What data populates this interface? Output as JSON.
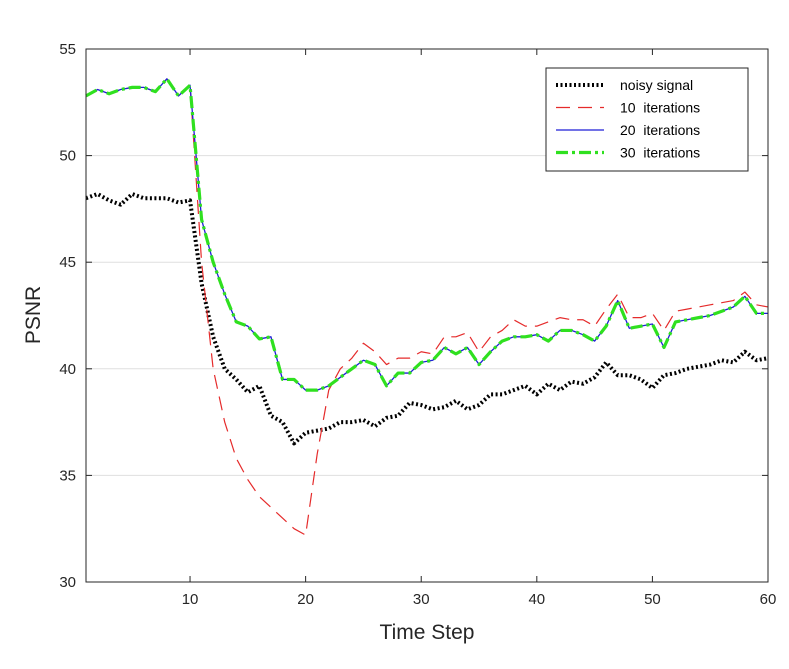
{
  "chart_data": {
    "type": "line",
    "title": "",
    "xlabel": "Time Step",
    "ylabel": "PSNR",
    "xlim": [
      1,
      60
    ],
    "ylim": [
      30,
      55
    ],
    "xticks": [
      10,
      20,
      30,
      40,
      50,
      60
    ],
    "yticks": [
      30,
      35,
      40,
      45,
      50,
      55
    ],
    "grid": "horizontal",
    "legend_position": "top-right",
    "x": [
      1,
      2,
      3,
      4,
      5,
      6,
      7,
      8,
      9,
      10,
      11,
      12,
      13,
      14,
      15,
      16,
      17,
      18,
      19,
      20,
      21,
      22,
      23,
      24,
      25,
      26,
      27,
      28,
      29,
      30,
      31,
      32,
      33,
      34,
      35,
      36,
      37,
      38,
      39,
      40,
      41,
      42,
      43,
      44,
      45,
      46,
      47,
      48,
      49,
      50,
      51,
      52,
      53,
      54,
      55,
      56,
      57,
      58,
      59,
      60
    ],
    "series": [
      {
        "name": "noisy signal",
        "color": "#000000",
        "style": "dotted",
        "values": [
          48.0,
          48.2,
          47.9,
          47.7,
          48.2,
          48.0,
          48.0,
          48.0,
          47.8,
          47.9,
          44.0,
          41.5,
          40.0,
          39.5,
          38.9,
          39.2,
          37.8,
          37.5,
          36.5,
          37.0,
          37.1,
          37.2,
          37.5,
          37.5,
          37.6,
          37.3,
          37.7,
          37.8,
          38.4,
          38.3,
          38.1,
          38.2,
          38.5,
          38.1,
          38.3,
          38.8,
          38.8,
          39.0,
          39.2,
          38.8,
          39.3,
          39.0,
          39.4,
          39.3,
          39.6,
          40.3,
          39.7,
          39.7,
          39.5,
          39.1,
          39.7,
          39.8,
          40.0,
          40.1,
          40.2,
          40.4,
          40.3,
          40.8,
          40.4,
          40.5
        ]
      },
      {
        "name": "10  iterations",
        "color": "#e52b2b",
        "style": "dashed",
        "values": [
          52.8,
          53.1,
          52.9,
          53.1,
          53.2,
          53.2,
          53.0,
          53.6,
          52.8,
          53.3,
          45.0,
          40.0,
          37.5,
          35.8,
          34.8,
          34.0,
          33.5,
          33.0,
          32.5,
          32.2,
          36.0,
          39.0,
          40.0,
          40.5,
          41.2,
          40.8,
          40.2,
          40.5,
          40.5,
          40.8,
          40.7,
          41.5,
          41.5,
          41.7,
          40.8,
          41.5,
          41.8,
          42.3,
          42.0,
          42.0,
          42.2,
          42.4,
          42.3,
          42.3,
          42.0,
          42.8,
          43.5,
          42.4,
          42.4,
          42.6,
          41.8,
          42.7,
          42.8,
          42.9,
          43.0,
          43.1,
          43.2,
          43.6,
          43.0,
          42.9
        ]
      },
      {
        "name": "20  iterations",
        "color": "#1f1fd6",
        "style": "solid",
        "values": [
          52.8,
          53.1,
          52.9,
          53.1,
          53.2,
          53.2,
          53.0,
          53.6,
          52.8,
          53.3,
          47.0,
          45.0,
          43.5,
          42.2,
          42.0,
          41.4,
          41.5,
          39.5,
          39.5,
          39.0,
          39.0,
          39.2,
          39.6,
          40.0,
          40.4,
          40.2,
          39.2,
          39.8,
          39.8,
          40.3,
          40.4,
          41.0,
          40.7,
          41.0,
          40.2,
          40.8,
          41.3,
          41.5,
          41.5,
          41.6,
          41.3,
          41.8,
          41.8,
          41.6,
          41.3,
          42.0,
          43.2,
          41.9,
          42.0,
          42.1,
          41.0,
          42.2,
          42.3,
          42.4,
          42.5,
          42.7,
          42.9,
          43.4,
          42.6,
          42.6
        ]
      },
      {
        "name": "30  iterations",
        "color": "#2fe01f",
        "style": "dashdot",
        "values": [
          52.8,
          53.1,
          52.9,
          53.1,
          53.2,
          53.2,
          53.0,
          53.6,
          52.8,
          53.3,
          47.0,
          45.0,
          43.5,
          42.2,
          42.0,
          41.4,
          41.5,
          39.5,
          39.5,
          39.0,
          39.0,
          39.2,
          39.6,
          40.0,
          40.4,
          40.2,
          39.2,
          39.8,
          39.8,
          40.3,
          40.4,
          41.0,
          40.7,
          41.0,
          40.2,
          40.8,
          41.3,
          41.5,
          41.5,
          41.6,
          41.3,
          41.8,
          41.8,
          41.6,
          41.3,
          42.0,
          43.2,
          41.9,
          42.0,
          42.1,
          41.0,
          42.2,
          42.3,
          42.4,
          42.5,
          42.7,
          42.9,
          43.4,
          42.6,
          42.6
        ]
      }
    ]
  }
}
